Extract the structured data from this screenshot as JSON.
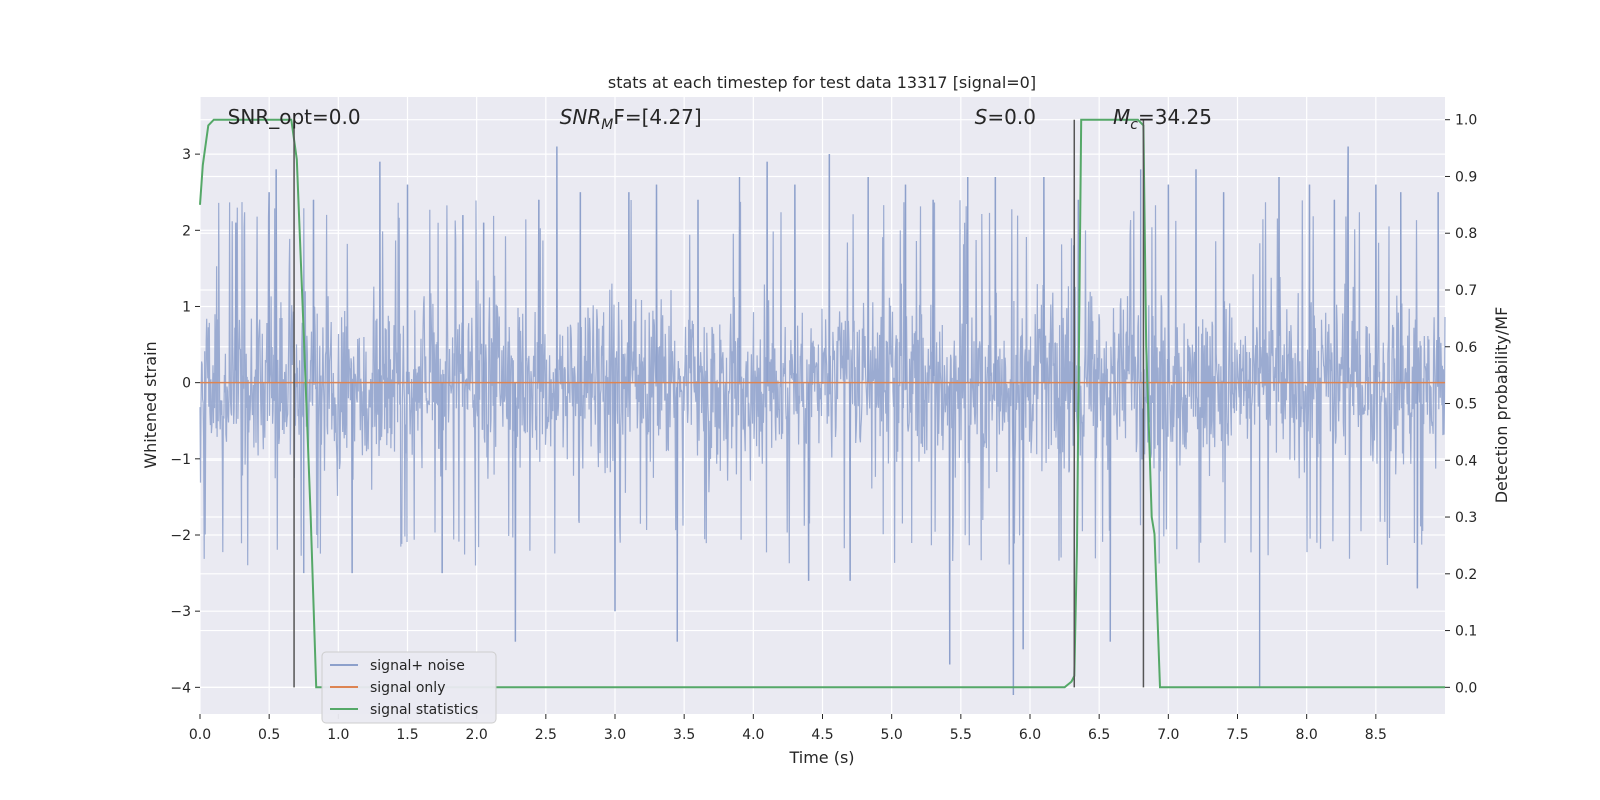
{
  "chart_data": {
    "type": "line",
    "title": "stats at each timestep for test data 13317 [signal=0]",
    "xlabel": "Time (s)",
    "ylabel": "Whitened strain",
    "y2label": "Detection probability/MF",
    "xlim": [
      0.0,
      9.0
    ],
    "ylim": [
      -4.35,
      3.75
    ],
    "y2lim": [
      -0.047,
      1.04
    ],
    "x_ticks": [
      "0.0",
      "0.5",
      "1.0",
      "1.5",
      "2.0",
      "2.5",
      "3.0",
      "3.5",
      "4.0",
      "4.5",
      "5.0",
      "5.5",
      "6.0",
      "6.5",
      "7.0",
      "7.5",
      "8.0",
      "8.5"
    ],
    "x_tick_values": [
      0.0,
      0.5,
      1.0,
      1.5,
      2.0,
      2.5,
      3.0,
      3.5,
      4.0,
      4.5,
      5.0,
      5.5,
      6.0,
      6.5,
      7.0,
      7.5,
      8.0,
      8.5
    ],
    "y_ticks": [
      "3",
      "2",
      "1",
      "0",
      "−1",
      "−2",
      "−3",
      "−4"
    ],
    "y_tick_values": [
      3,
      2,
      1,
      0,
      -1,
      -2,
      -3,
      -4
    ],
    "y2_ticks": [
      "1.0",
      "0.9",
      "0.8",
      "0.7",
      "0.6",
      "0.5",
      "0.4",
      "0.3",
      "0.2",
      "0.1",
      "0.0"
    ],
    "y2_tick_values": [
      1.0,
      0.9,
      0.8,
      0.7,
      0.6,
      0.5,
      0.4,
      0.3,
      0.2,
      0.1,
      0.0
    ],
    "grid": true,
    "legend_position": "lower-left",
    "annotations": [
      {
        "kind": "plain",
        "text": "SNR_opt=0.0",
        "x": 0.2
      },
      {
        "kind": "subscript",
        "base": "SNR",
        "sub": "M",
        "rest": "F=[4.27]",
        "x": 2.6
      },
      {
        "kind": "italic",
        "base": "S",
        "rest": "=0.0",
        "x": 5.6
      },
      {
        "kind": "subscript",
        "base": "M",
        "sub": "c",
        "rest": "=34.25",
        "x": 6.6
      }
    ],
    "vlines": [
      0.68,
      6.32,
      6.82
    ],
    "series": [
      {
        "name": "signal+ noise",
        "color": "#8da0cb",
        "amplitude_envelope": {
          "typical_max": 1.6,
          "peaks": [
            [
              0.26,
              2.1
            ],
            [
              0.5,
              2.5
            ],
            [
              0.55,
              2.8
            ],
            [
              0.75,
              -2.5
            ],
            [
              0.82,
              2.4
            ],
            [
              1.1,
              -2.5
            ],
            [
              1.3,
              2.9
            ],
            [
              1.5,
              2.6
            ],
            [
              1.75,
              -2.5
            ],
            [
              1.9,
              2.2
            ],
            [
              2.05,
              2.1
            ],
            [
              2.28,
              -3.4
            ],
            [
              2.45,
              2.4
            ],
            [
              2.58,
              3.1
            ],
            [
              2.75,
              2.5
            ],
            [
              3.0,
              -3.0
            ],
            [
              3.1,
              2.5
            ],
            [
              3.3,
              2.6
            ],
            [
              3.45,
              -3.4
            ],
            [
              3.6,
              2.4
            ],
            [
              3.9,
              2.7
            ],
            [
              4.1,
              2.9
            ],
            [
              4.3,
              2.6
            ],
            [
              4.4,
              -2.6
            ],
            [
              4.55,
              3.0
            ],
            [
              4.7,
              -2.6
            ],
            [
              4.83,
              2.7
            ],
            [
              5.1,
              2.6
            ],
            [
              5.3,
              2.4
            ],
            [
              5.42,
              -3.7
            ],
            [
              5.55,
              2.7
            ],
            [
              5.75,
              2.7
            ],
            [
              5.88,
              -4.1
            ],
            [
              5.95,
              -3.5
            ],
            [
              6.1,
              2.7
            ],
            [
              6.35,
              2.4
            ],
            [
              6.58,
              -3.4
            ],
            [
              6.8,
              2.8
            ],
            [
              7.0,
              2.6
            ],
            [
              7.2,
              2.8
            ],
            [
              7.4,
              2.5
            ],
            [
              7.66,
              -4.0
            ],
            [
              7.8,
              2.7
            ],
            [
              8.02,
              2.6
            ],
            [
              8.2,
              2.4
            ],
            [
              8.3,
              3.1
            ],
            [
              8.5,
              2.6
            ],
            [
              8.68,
              2.5
            ],
            [
              8.8,
              -2.7
            ],
            [
              8.95,
              2.5
            ]
          ]
        }
      },
      {
        "name": "signal only",
        "color": "#dd8452",
        "x": [
          0.0,
          9.0
        ],
        "y": [
          0.0,
          0.0
        ]
      },
      {
        "name": "signal statistics",
        "color": "#55a868",
        "axis": "right",
        "x": [
          0.0,
          0.02,
          0.06,
          0.1,
          0.55,
          0.66,
          0.7,
          0.75,
          0.8,
          0.84,
          6.25,
          6.3,
          6.32,
          6.34,
          6.37,
          6.78,
          6.82,
          6.84,
          6.86,
          6.88,
          6.9,
          6.94,
          9.0
        ],
        "y": [
          0.85,
          0.92,
          0.99,
          1.0,
          1.0,
          1.0,
          0.93,
          0.62,
          0.3,
          0.0,
          0.0,
          0.01,
          0.02,
          0.25,
          1.0,
          1.0,
          0.99,
          0.6,
          0.45,
          0.3,
          0.27,
          0.0,
          0.0
        ]
      }
    ]
  }
}
